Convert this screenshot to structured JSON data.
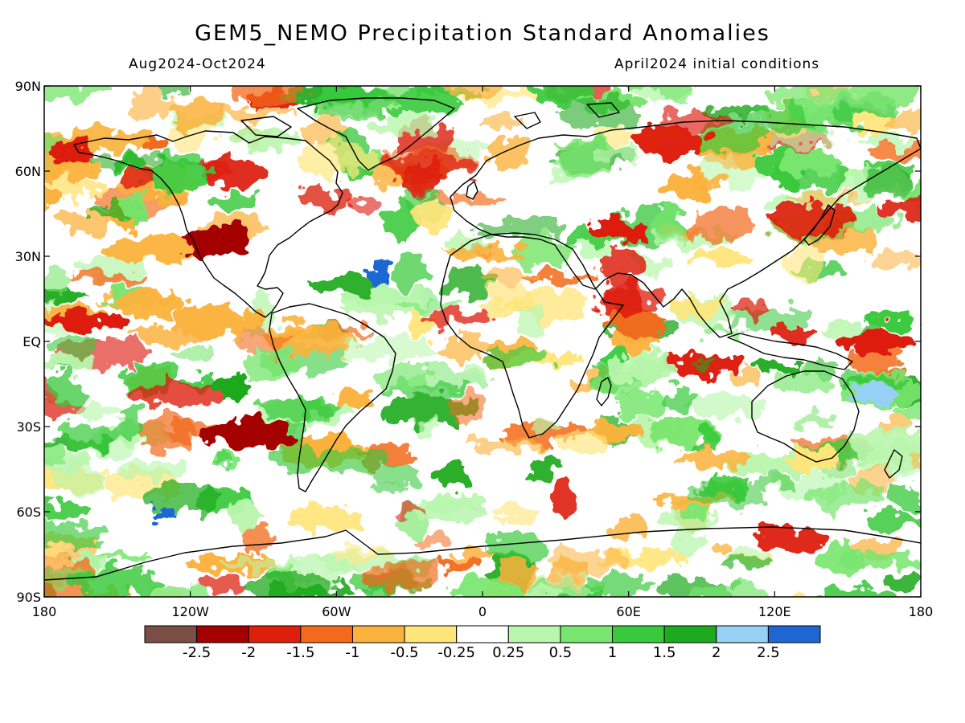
{
  "title": "GEM5_NEMO Precipitation Standard Anomalies",
  "subtitle_left": "Aug2024-Oct2024",
  "subtitle_right": "April2024 initial conditions",
  "axes": {
    "lat_labels": [
      "90N",
      "60N",
      "30N",
      "EQ",
      "30S",
      "60S",
      "90S"
    ],
    "lat_values": [
      90,
      60,
      30,
      0,
      -30,
      -60,
      -90
    ],
    "lon_labels": [
      "180",
      "120W",
      "60W",
      "0",
      "60E",
      "120E",
      "180"
    ],
    "lon_values": [
      -180,
      -120,
      -60,
      0,
      60,
      120,
      180
    ]
  },
  "colorbar": {
    "levels": [
      "-2.5",
      "-2",
      "-1.5",
      "-1",
      "-0.5",
      "-0.25",
      "0.25",
      "0.5",
      "1",
      "1.5",
      "2",
      "2.5"
    ],
    "colors": [
      "#7a4e45",
      "#a50000",
      "#dd1f0c",
      "#f26a1b",
      "#fbb23d",
      "#ffe57a",
      "#ffffff",
      "#b9f6ad",
      "#78e66e",
      "#39c93c",
      "#1eaa1e",
      "#96d1f5",
      "#1e67d2"
    ]
  },
  "colors": {
    "land_outline": "#000000",
    "frame": "#000000"
  }
}
